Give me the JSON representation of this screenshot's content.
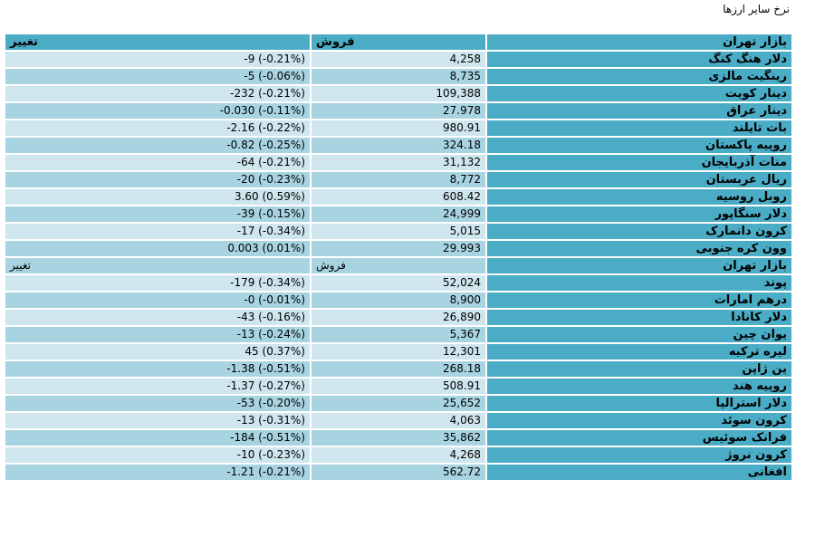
{
  "page_title": "نرخ سایر ارزها",
  "colors": {
    "header": "#4bacc6",
    "row_light": "#cfe6ef",
    "row_dark": "#a8d4e2"
  },
  "headers": {
    "market": "بازار تهران",
    "sell": "فروش",
    "change": "تغییر"
  },
  "rows": [
    {
      "kind": "data",
      "name": "دلار هنگ کنگ",
      "sell": "4,258",
      "change": "-9 (-0.21%)"
    },
    {
      "kind": "data",
      "name": "رینگیت مالزی",
      "sell": "8,735",
      "change": "-5 (-0.06%)"
    },
    {
      "kind": "data",
      "name": "دینار کویت",
      "sell": "109,388",
      "change": "-232 (-0.21%)"
    },
    {
      "kind": "data",
      "name": "دینار عراق",
      "sell": "27.978",
      "change": "-0.030 (-0.11%)"
    },
    {
      "kind": "data",
      "name": "بات تایلند",
      "sell": "980.91",
      "change": "-2.16 (-0.22%)"
    },
    {
      "kind": "data",
      "name": "روپیه پاکستان",
      "sell": "324.18",
      "change": "-0.82 (-0.25%)"
    },
    {
      "kind": "data",
      "name": "منات آذربایجان",
      "sell": "31,132",
      "change": "-64 (-0.21%)"
    },
    {
      "kind": "data",
      "name": "ریال عربستان",
      "sell": "8,772",
      "change": "-20 (-0.23%)"
    },
    {
      "kind": "data",
      "name": "روبل روسیه",
      "sell": "608.42",
      "change": "3.60 (0.59%)"
    },
    {
      "kind": "data",
      "name": "دلار سنگاپور",
      "sell": "24,999",
      "change": "-39 (-0.15%)"
    },
    {
      "kind": "data",
      "name": "کرون دانمارک",
      "sell": "5,015",
      "change": "-17 (-0.34%)"
    },
    {
      "kind": "data",
      "name": "وون کره جنوبی",
      "sell": "29.993",
      "change": "0.003 (0.01%)"
    },
    {
      "kind": "sub",
      "name": "بازار تهران",
      "sell": "فروش",
      "change": "تغییر"
    },
    {
      "kind": "data",
      "name": "پوند",
      "sell": "52,024",
      "change": "-179 (-0.34%)"
    },
    {
      "kind": "data",
      "name": "درهم امارات",
      "sell": "8,900",
      "change": "-0 (-0.01%)"
    },
    {
      "kind": "data",
      "name": "دلار کانادا",
      "sell": "26,890",
      "change": "-43 (-0.16%)"
    },
    {
      "kind": "data",
      "name": "یوان چین",
      "sell": "5,367",
      "change": "-13 (-0.24%)"
    },
    {
      "kind": "data",
      "name": "لیره ترکیه",
      "sell": "12,301",
      "change": "45 (0.37%)"
    },
    {
      "kind": "data",
      "name": "ین ژاپن",
      "sell": "268.18",
      "change": "-1.38 (-0.51%)"
    },
    {
      "kind": "data",
      "name": "روپیه هند",
      "sell": "508.91",
      "change": "-1.37 (-0.27%)"
    },
    {
      "kind": "data",
      "name": "دلار استرالیا",
      "sell": "25,652",
      "change": "-53 (-0.20%)"
    },
    {
      "kind": "data",
      "name": "کرون سوئد",
      "sell": "4,063",
      "change": "-13 (-0.31%)"
    },
    {
      "kind": "data",
      "name": "فرانک سوئیس",
      "sell": "35,862",
      "change": "-184 (-0.51%)"
    },
    {
      "kind": "data",
      "name": "کرون نروژ",
      "sell": "4,268",
      "change": "-10 (-0.23%)"
    },
    {
      "kind": "data",
      "name": "افغانی",
      "sell": "562.72",
      "change": "-1.21 (-0.21%)"
    }
  ]
}
